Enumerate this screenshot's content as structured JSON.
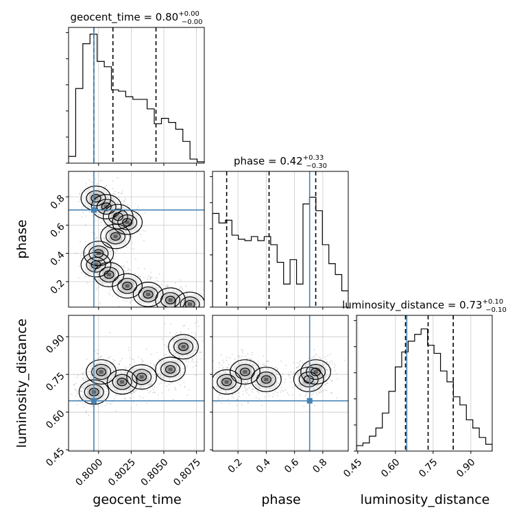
{
  "chart_data": {
    "type": "corner",
    "parameters": [
      "geocent_time",
      "phase",
      "luminosity_distance"
    ],
    "axis_labels": {
      "geocent_time": "geocent_time",
      "phase": "phase",
      "luminosity_distance": "luminosity_distance"
    },
    "titles": [
      {
        "param": "geocent_time",
        "main": "geocent_time = 0.80",
        "sup": "+0.00",
        "sub": "−0.00"
      },
      {
        "param": "phase",
        "main": "phase = 0.42",
        "sup": "+0.33",
        "sub": "−0.30"
      },
      {
        "param": "luminosity_distance",
        "main": "luminosity_distance = 0.73",
        "sup": "+0.10",
        "sub": "−0.10"
      }
    ],
    "ranges": {
      "geocent_time": [
        0.7977,
        0.8081
      ],
      "phase": [
        0.02,
        0.98
      ],
      "luminosity_distance": [
        0.445,
        0.985
      ]
    },
    "ticks": {
      "geocent_time": {
        "values": [
          0.8,
          0.8025,
          0.805,
          0.8075
        ],
        "labels": [
          "0.8000",
          "0.8025",
          "0.8050",
          "0.8075"
        ]
      },
      "phase": {
        "values": [
          0.2,
          0.4,
          0.6,
          0.8
        ],
        "labels": [
          "0.2",
          "0.4",
          "0.6",
          "0.8"
        ]
      },
      "luminosity_distance": {
        "values": [
          0.45,
          0.6,
          0.75,
          0.9
        ],
        "labels": [
          "0.45",
          "0.60",
          "0.75",
          "0.90"
        ]
      }
    },
    "truths": {
      "geocent_time": 0.79964,
      "phase": 0.707,
      "luminosity_distance": 0.645
    },
    "quantiles": {
      "geocent_time": [
        0.79964,
        0.8011,
        0.8044
      ],
      "phase": [
        0.12,
        0.42,
        0.75
      ],
      "luminosity_distance": [
        0.64,
        0.73,
        0.83
      ]
    },
    "histograms": {
      "geocent_time": [
        0.05,
        0.55,
        0.88,
        0.95,
        0.75,
        0.71,
        0.54,
        0.53,
        0.49,
        0.47,
        0.47,
        0.4,
        0.29,
        0.33,
        0.3,
        0.25,
        0.16,
        0.03,
        0.01
      ],
      "phase": [
        0.69,
        0.62,
        0.64,
        0.53,
        0.5,
        0.49,
        0.52,
        0.49,
        0.52,
        0.46,
        0.33,
        0.17,
        0.35,
        0.17,
        0.76,
        0.81,
        0.71,
        0.46,
        0.32,
        0.24,
        0.12
      ],
      "luminosity_distance": [
        0.04,
        0.06,
        0.11,
        0.17,
        0.28,
        0.44,
        0.62,
        0.73,
        0.81,
        0.86,
        0.9,
        0.78,
        0.72,
        0.59,
        0.51,
        0.4,
        0.34,
        0.23,
        0.17,
        0.1,
        0.05
      ]
    },
    "contour_centers": {
      "geocent_time_vs_phase": [
        [
          0.7998,
          0.79
        ],
        [
          0.8006,
          0.73
        ],
        [
          0.8015,
          0.66
        ],
        [
          0.8022,
          0.62
        ],
        [
          0.8013,
          0.52
        ],
        [
          0.8,
          0.4
        ],
        [
          0.7998,
          0.32
        ],
        [
          0.8008,
          0.25
        ],
        [
          0.8022,
          0.17
        ],
        [
          0.8038,
          0.11
        ],
        [
          0.8055,
          0.07
        ],
        [
          0.807,
          0.04
        ]
      ],
      "geocent_time_vs_luminosity_distance": [
        [
          0.79965,
          0.68
        ],
        [
          0.8002,
          0.76
        ],
        [
          0.8018,
          0.72
        ],
        [
          0.8033,
          0.74
        ],
        [
          0.8055,
          0.77
        ],
        [
          0.8065,
          0.86
        ]
      ],
      "phase_vs_luminosity_distance": [
        [
          0.12,
          0.72
        ],
        [
          0.25,
          0.76
        ],
        [
          0.4,
          0.73
        ],
        [
          0.7,
          0.73
        ],
        [
          0.75,
          0.76
        ]
      ]
    }
  }
}
